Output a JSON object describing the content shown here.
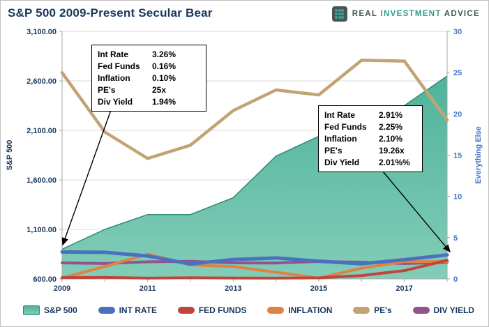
{
  "title": "S&P 500 2009-Present Secular Bear",
  "logo": {
    "word1": "REAL",
    "word2": "INVESTMENT",
    "word3": "ADVICE"
  },
  "colors": {
    "title": "#17375E",
    "right_axis": "#4472C4",
    "area_fill_top": "#4FB39A",
    "area_fill_bottom": "#82CDB8",
    "area_edge": "#2F8C74",
    "gridline": "#D9D9D9"
  },
  "chart_data": {
    "type": "combo-area-line",
    "x": [
      2009,
      2010,
      2011,
      2012,
      2013,
      2014,
      2015,
      2016,
      2017,
      2018
    ],
    "x_ticks": [
      "2009",
      "2011",
      "2013",
      "2015",
      "2017"
    ],
    "left_axis": {
      "label": "S&P 500",
      "range": [
        600,
        3100
      ],
      "ticks": [
        {
          "label": "3,100.00",
          "value": 3100
        },
        {
          "label": "2,600.00",
          "value": 2600
        },
        {
          "label": "2,100.00",
          "value": 2100
        },
        {
          "label": "1,600.00",
          "value": 1600
        },
        {
          "label": "1,100.00",
          "value": 1100
        },
        {
          "label": "600.00",
          "value": 600
        }
      ]
    },
    "right_axis": {
      "label": "Everything Else",
      "range": [
        0,
        30
      ],
      "ticks": [
        {
          "label": "0",
          "value": 0
        },
        {
          "label": "5",
          "value": 5
        },
        {
          "label": "10",
          "value": 10
        },
        {
          "label": "15",
          "value": 15
        },
        {
          "label": "20",
          "value": 20
        },
        {
          "label": "25",
          "value": 25
        },
        {
          "label": "30",
          "value": 30
        }
      ]
    },
    "series": [
      {
        "name": "S&P 500",
        "type": "area",
        "axis": "left",
        "color": "#2F8C74",
        "width": 1.5,
        "values": [
          900,
          1100,
          1250,
          1250,
          1420,
          1840,
          2040,
          2070,
          2350,
          2650
        ]
      },
      {
        "name": "INT RATE",
        "type": "line",
        "axis": "right",
        "color": "#4A71C0",
        "width": 5,
        "values": [
          3.26,
          3.22,
          2.78,
          1.8,
          2.35,
          2.54,
          2.14,
          1.84,
          2.33,
          2.91
        ]
      },
      {
        "name": "FED FUNDS",
        "type": "line",
        "axis": "right",
        "color": "#C0453C",
        "width": 4,
        "values": [
          0.16,
          0.18,
          0.1,
          0.14,
          0.11,
          0.09,
          0.13,
          0.4,
          1.0,
          2.25
        ]
      },
      {
        "name": "INFLATION",
        "type": "line",
        "axis": "right",
        "color": "#DF8244",
        "width": 4,
        "values": [
          0.1,
          1.5,
          3.0,
          1.7,
          1.5,
          0.8,
          0.1,
          1.3,
          2.1,
          2.1
        ]
      },
      {
        "name": "PE's",
        "type": "line",
        "axis": "right",
        "color": "#C3A374",
        "width": 4.5,
        "values": [
          25.0,
          17.8,
          14.6,
          16.2,
          20.4,
          22.9,
          22.3,
          26.5,
          26.4,
          19.26
        ]
      },
      {
        "name": "DIV YIELD",
        "type": "line",
        "axis": "right",
        "color": "#94538F",
        "width": 4,
        "values": [
          1.94,
          1.87,
          2.07,
          2.13,
          1.94,
          1.92,
          2.11,
          2.03,
          1.86,
          2.01
        ]
      }
    ]
  },
  "annotations": [
    {
      "rows": [
        [
          "Int Rate",
          "3.26%"
        ],
        [
          "Fed Funds",
          "0.16%"
        ],
        [
          "Inflation",
          "0.10%"
        ],
        [
          "PE's",
          "25x"
        ],
        [
          "Div Yield",
          "1.94%"
        ]
      ]
    },
    {
      "rows": [
        [
          "Int Rate",
          "2.91%"
        ],
        [
          "Fed Funds",
          "2.25%"
        ],
        [
          "Inflation",
          "2.10%"
        ],
        [
          "PE's",
          "19.26x"
        ],
        [
          "Div Yield",
          "2.01%%"
        ]
      ]
    }
  ]
}
